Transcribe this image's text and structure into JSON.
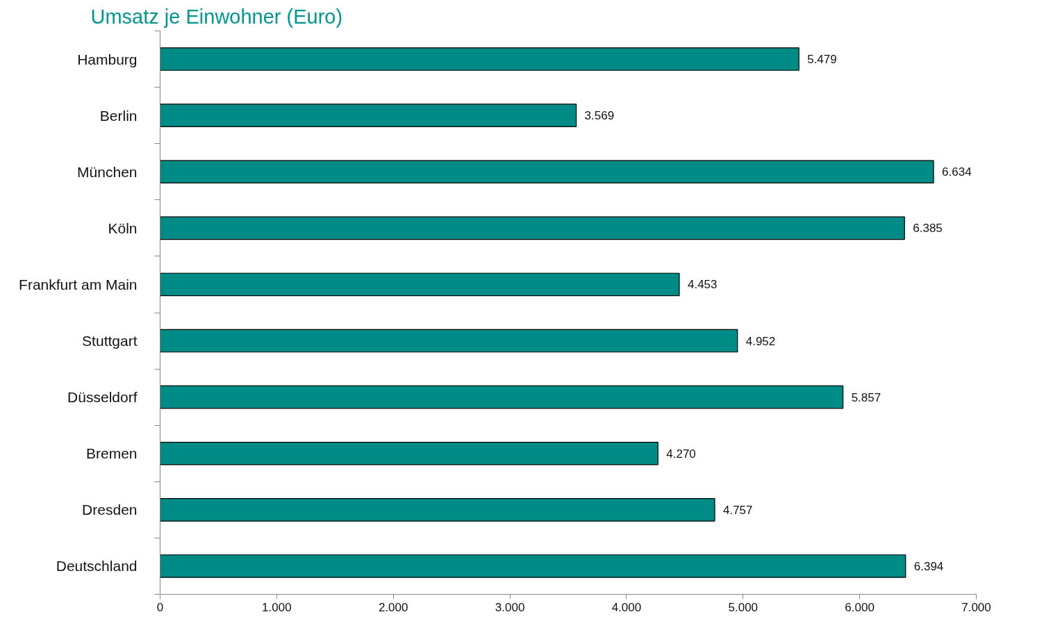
{
  "chart_data": {
    "type": "bar",
    "orientation": "horizontal",
    "title": "Umsatz je Einwohner (Euro)",
    "categories": [
      "Hamburg",
      "Berlin",
      "München",
      "Köln",
      "Frankfurt am Main",
      "Stuttgart",
      "Düsseldorf",
      "Bremen",
      "Dresden",
      "Deutschland"
    ],
    "values": [
      5479,
      3569,
      6634,
      6385,
      4453,
      4952,
      5857,
      4270,
      4757,
      6394
    ],
    "value_labels": [
      "5.479",
      "3.569",
      "6.634",
      "6.385",
      "4.453",
      "4.952",
      "5.857",
      "4.270",
      "4.757",
      "6.394"
    ],
    "color": "#008b86",
    "xlim": [
      0,
      7000
    ],
    "xticks": [
      0,
      {
        "value": 1000,
        "label": "1.000"
      },
      {
        "value": 2000,
        "label": "2.000"
      },
      {
        "value": 3000,
        "label": "3.000"
      },
      {
        "value": 4000,
        "label": "4.000"
      },
      {
        "value": 5000,
        "label": "5.000"
      },
      {
        "value": 6000,
        "label": "6.000"
      },
      {
        "value": 7000,
        "label": "7.000"
      }
    ],
    "grid": false
  }
}
